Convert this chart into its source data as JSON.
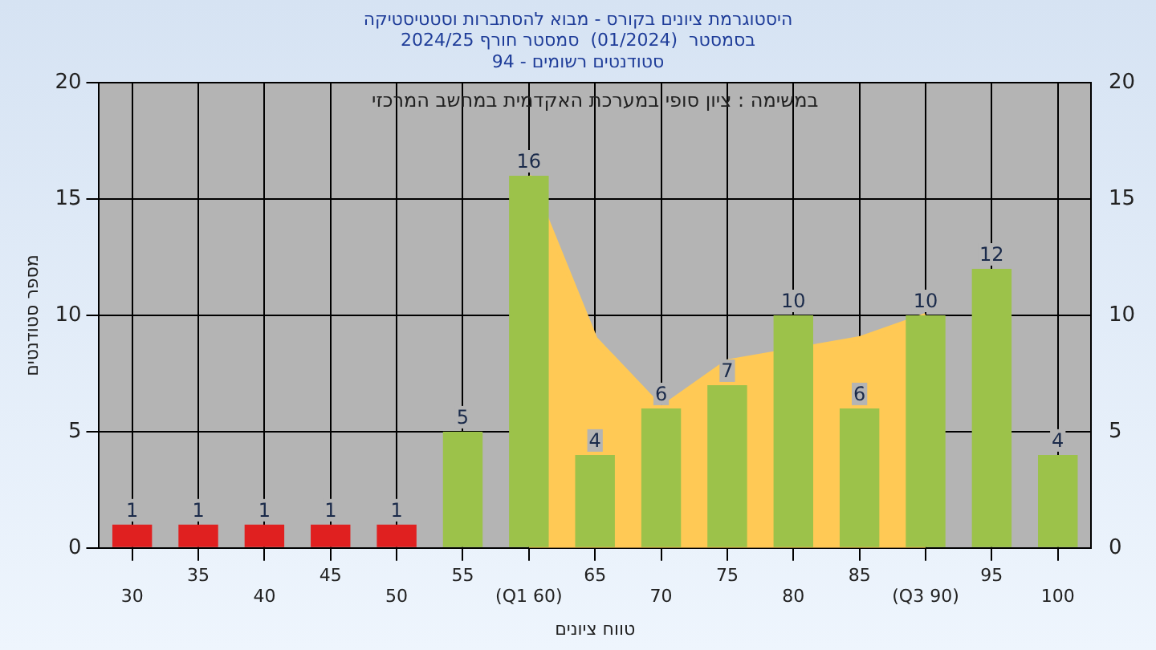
{
  "chart_data": {
    "type": "bar",
    "title": "היסטוגרמת ציונים בקורס - מבוא להסתברות וסטטיסטיקה",
    "subtitle": "בסמסטר  (01/2024)  סמסטר חורף 2024/25\nסטודנטים רשומים - 94",
    "xlabel": "טווח ציונים",
    "ylabel": "מספר סטודנטים",
    "annotations": [
      "במשימה : ציון סופי במערכת האקדמית במחשב המרכזי"
    ],
    "categories": [
      "30",
      "35",
      "40",
      "45",
      "50",
      "55",
      "(Q1 60)",
      "65",
      "70",
      "75",
      "80",
      "85",
      "(Q3 90)",
      "95",
      "100"
    ],
    "series": [
      {
        "values": [
          1,
          1,
          1,
          1,
          1,
          5,
          16,
          4,
          6,
          7,
          10,
          6,
          10,
          12,
          4
        ],
        "value_labels": [
          "1",
          "1",
          "1",
          "1",
          "1",
          "5",
          "16",
          "4",
          "6",
          "7",
          "10",
          "6",
          "10",
          "12",
          "4"
        ],
        "colors": [
          "#e02020",
          "#e02020",
          "#e02020",
          "#e02020",
          "#e02020",
          "#9cc24a",
          "#9cc24a",
          "#9cc24a",
          "#9cc24a",
          "#9cc24a",
          "#9cc24a",
          "#9cc24a",
          "#9cc24a",
          "#9cc24a",
          "#9cc24a"
        ]
      },
      {
        "type": "area",
        "color": "#ffc955",
        "values": [
          null,
          null,
          null,
          null,
          null,
          null,
          16,
          9,
          6,
          8,
          null,
          9,
          10,
          null,
          null
        ]
      }
    ],
    "ylim": [
      0,
      20
    ],
    "yticks": [
      0,
      5,
      10,
      15,
      20
    ],
    "y2lim": [
      0,
      20
    ],
    "y2ticks": [
      0,
      5,
      10,
      15,
      20
    ],
    "grid": true
  }
}
